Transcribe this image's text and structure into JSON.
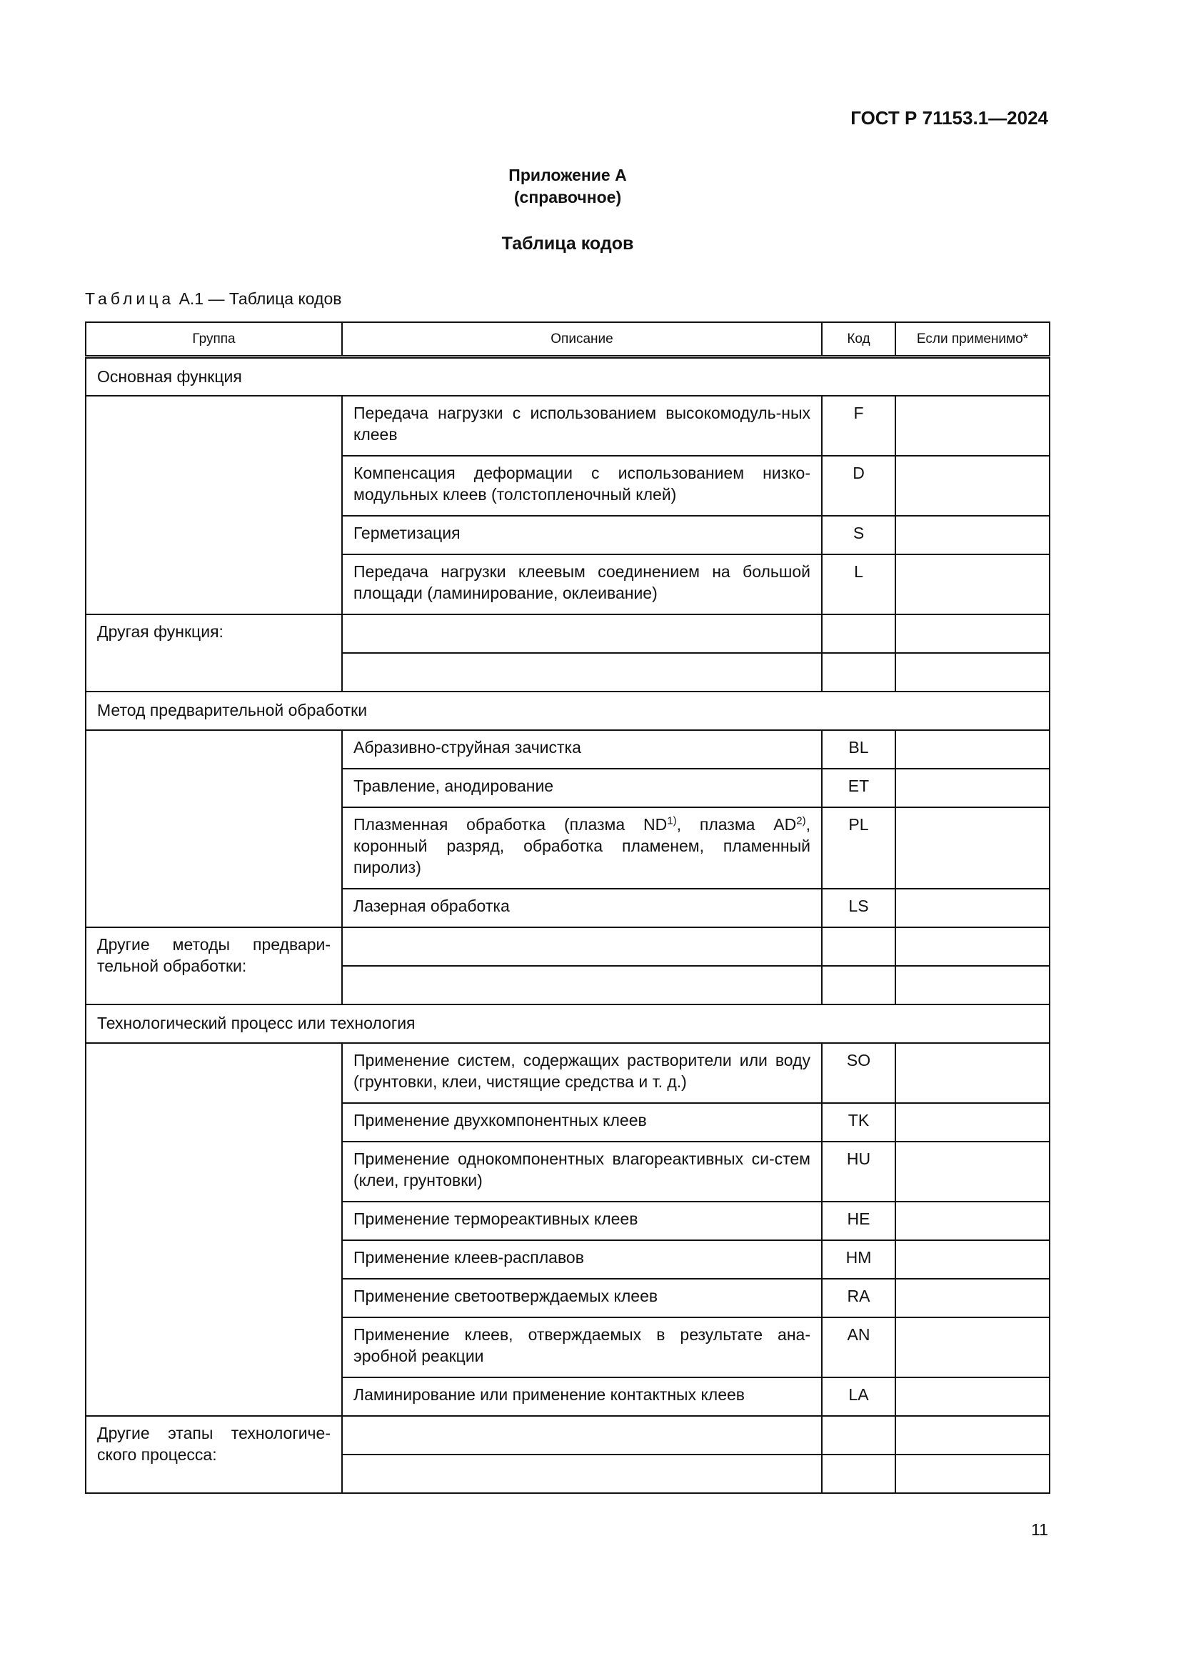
{
  "document_id": "ГОСТ Р 71153.1—2024",
  "appendix": {
    "title": "Приложение А",
    "subtitle": "(справочное)",
    "heading": "Таблица кодов"
  },
  "caption": {
    "prefix": "Таблица",
    "rest": "А.1 — Таблица кодов"
  },
  "table": {
    "headers": [
      "Группа",
      "Описание",
      "Код",
      "Если применимо*"
    ],
    "sections": [
      {
        "title": "Основная функция",
        "items": [
          {
            "desc": [
              {
                "t": "Передача нагрузки с использованием высокомодуль-ных клеев"
              }
            ],
            "code": "F",
            "lines": 2
          },
          {
            "desc": [
              {
                "t": "Компенсация деформации с использованием низко-модульных клеев (толстопленочный клей)"
              }
            ],
            "code": "D",
            "lines": 2
          },
          {
            "desc": [
              {
                "t": "Герметизация"
              }
            ],
            "code": "S",
            "lines": 1
          },
          {
            "desc": [
              {
                "t": "Передача нагрузки клеевым соединением на большой площади (ламинирование, оклеивание)"
              }
            ],
            "code": "L",
            "lines": 2
          }
        ],
        "other_label": "Другая функция:"
      },
      {
        "title": "Метод предварительной обработки",
        "items": [
          {
            "desc": [
              {
                "t": "Абразивно-струйная зачистка"
              }
            ],
            "code": "BL",
            "lines": 1
          },
          {
            "desc": [
              {
                "t": "Травление, анодирование"
              }
            ],
            "code": "ET",
            "lines": 1
          },
          {
            "desc": [
              {
                "t": "Плазменная обработка (плазма ND"
              },
              {
                "sup": "1)"
              },
              {
                "t": ", плазма AD"
              },
              {
                "sup": "2)"
              },
              {
                "t": ", коронный разряд, обработка пламенем, пламенный пиролиз)"
              }
            ],
            "code": "PL",
            "lines": 3
          },
          {
            "desc": [
              {
                "t": "Лазерная обработка"
              }
            ],
            "code": "LS",
            "lines": 1
          }
        ],
        "other_label": "Другие методы предвари-тельной обработки:"
      },
      {
        "title": "Технологический процесс или технология",
        "items": [
          {
            "desc": [
              {
                "t": "Применение систем, содержащих растворители или воду (грунтовки, клеи, чистящие средства и т. д.)"
              }
            ],
            "code": "SO",
            "lines": 2
          },
          {
            "desc": [
              {
                "t": "Применение двухкомпонентных клеев"
              }
            ],
            "code": "TK",
            "lines": 1
          },
          {
            "desc": [
              {
                "t": "Применение однокомпонентных влагореактивных си-стем (клеи, грунтовки)"
              }
            ],
            "code": "HU",
            "lines": 2
          },
          {
            "desc": [
              {
                "t": "Применение термореактивных клеев"
              }
            ],
            "code": "HE",
            "lines": 1
          },
          {
            "desc": [
              {
                "t": "Применение клеев-расплавов"
              }
            ],
            "code": "HM",
            "lines": 1
          },
          {
            "desc": [
              {
                "t": "Применение светоотверждаемых клеев"
              }
            ],
            "code": "RA",
            "lines": 1
          },
          {
            "desc": [
              {
                "t": "Применение клеев, отверждаемых в результате ана-эробной реакции"
              }
            ],
            "code": "AN",
            "lines": 2
          },
          {
            "desc": [
              {
                "t": "Ламинирование или применение контактных клеев"
              }
            ],
            "code": "LA",
            "lines": 1
          }
        ],
        "other_label": "Другие этапы технологиче-ского процесса:"
      }
    ]
  },
  "page_number": "11"
}
